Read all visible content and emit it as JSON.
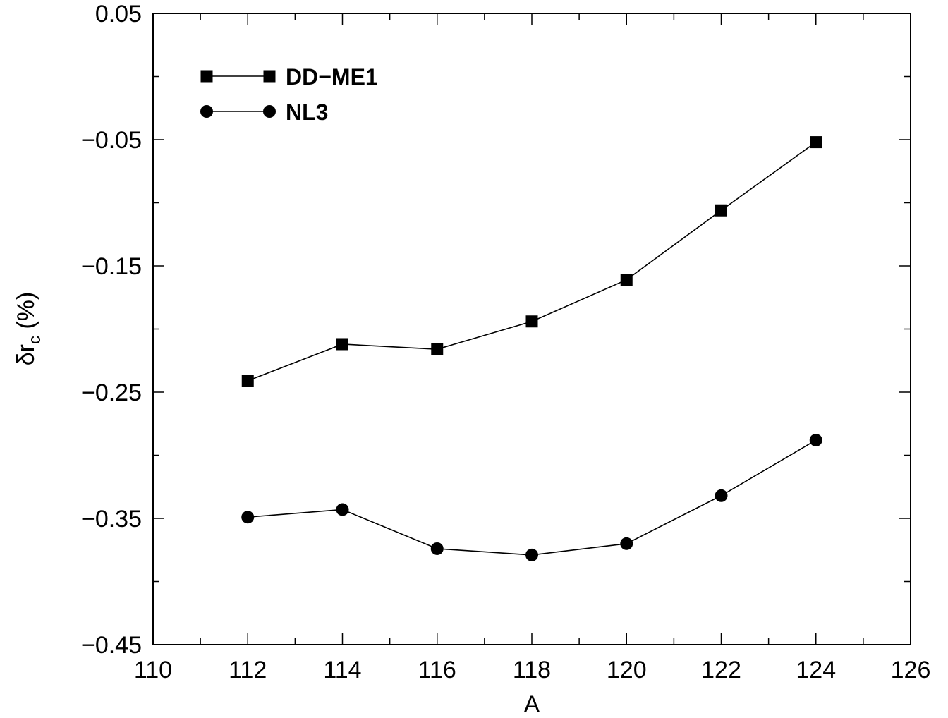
{
  "chart_data": {
    "type": "line",
    "xlabel": "A",
    "ylabel": {
      "main": "δr",
      "sub": "c",
      "suffix": " (%)"
    },
    "xlim": [
      110,
      126
    ],
    "ylim": [
      -0.45,
      0.05
    ],
    "x_ticks": [
      "110",
      "112",
      "114",
      "116",
      "118",
      "120",
      "122",
      "124",
      "126"
    ],
    "x_minor_step": 1,
    "y_ticks": [
      "0.05",
      "−0.05",
      "−0.15",
      "−0.25",
      "−0.35",
      "−0.45"
    ],
    "y_minor_step": 0.05,
    "grid": false,
    "legend_position": "top-left",
    "x": [
      112,
      114,
      116,
      118,
      120,
      122,
      124
    ],
    "series": [
      {
        "name": "DD−ME1",
        "marker": "square",
        "values": [
          -0.241,
          -0.212,
          -0.216,
          -0.194,
          -0.161,
          -0.106,
          -0.052
        ]
      },
      {
        "name": "NL3",
        "marker": "circle",
        "values": [
          -0.349,
          -0.343,
          -0.374,
          -0.379,
          -0.37,
          -0.332,
          -0.288
        ]
      }
    ]
  }
}
